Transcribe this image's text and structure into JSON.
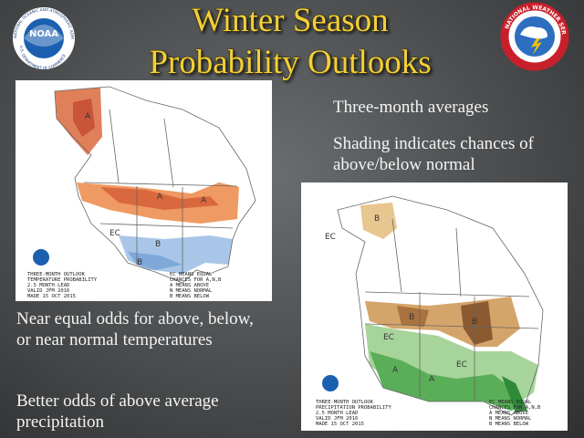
{
  "header": {
    "title_lines": [
      "Winter Season",
      "Probability Outlooks"
    ],
    "logo_left": "NOAA",
    "logo_left_ring": "NATIONAL OCEANIC AND ATMOSPHERIC ADMINISTRATION",
    "logo_left_ring_bottom": "U.S. DEPARTMENT OF COMMERCE",
    "logo_right_ring": "NATIONAL WEATHER SERVICE"
  },
  "bullets_right": [
    "Three-month averages",
    "Shading indicates chances of above/below normal"
  ],
  "bullets_left": [
    "Near equal odds for above, below, or near normal temperatures",
    "Better odds of above average precipitation"
  ],
  "maps": [
    {
      "caption_lines": [
        "THREE-MONTH OUTLOOK",
        "TEMPERATURE PROBABILITY",
        "2.5 MONTH LEAD",
        "VALID JFM 2016",
        "MADE 15 OCT 2015"
      ],
      "legend_lines": [
        "EC MEANS EQUAL",
        "CHANCES FOR A,N,B",
        "A MEANS ABOVE",
        "N MEANS NORMAL",
        "B MEANS BELOW"
      ],
      "labels": [
        "A",
        "A",
        "A",
        "EC",
        "B",
        "B"
      ]
    },
    {
      "caption_lines": [
        "THREE-MONTH OUTLOOK",
        "PRECIPITATION PROBABILITY",
        "2.5 MONTH LEAD",
        "VALID JFM 2016",
        "MADE 15 OCT 2015"
      ],
      "legend_lines": [
        "EC MEANS EQUAL",
        "CHANCES FOR A,N,B",
        "A MEANS ABOVE",
        "N MEANS NORMAL",
        "B MEANS BELOW"
      ],
      "labels": [
        "B",
        "EC",
        "B",
        "B",
        "EC",
        "A",
        "A",
        "EC"
      ]
    }
  ]
}
